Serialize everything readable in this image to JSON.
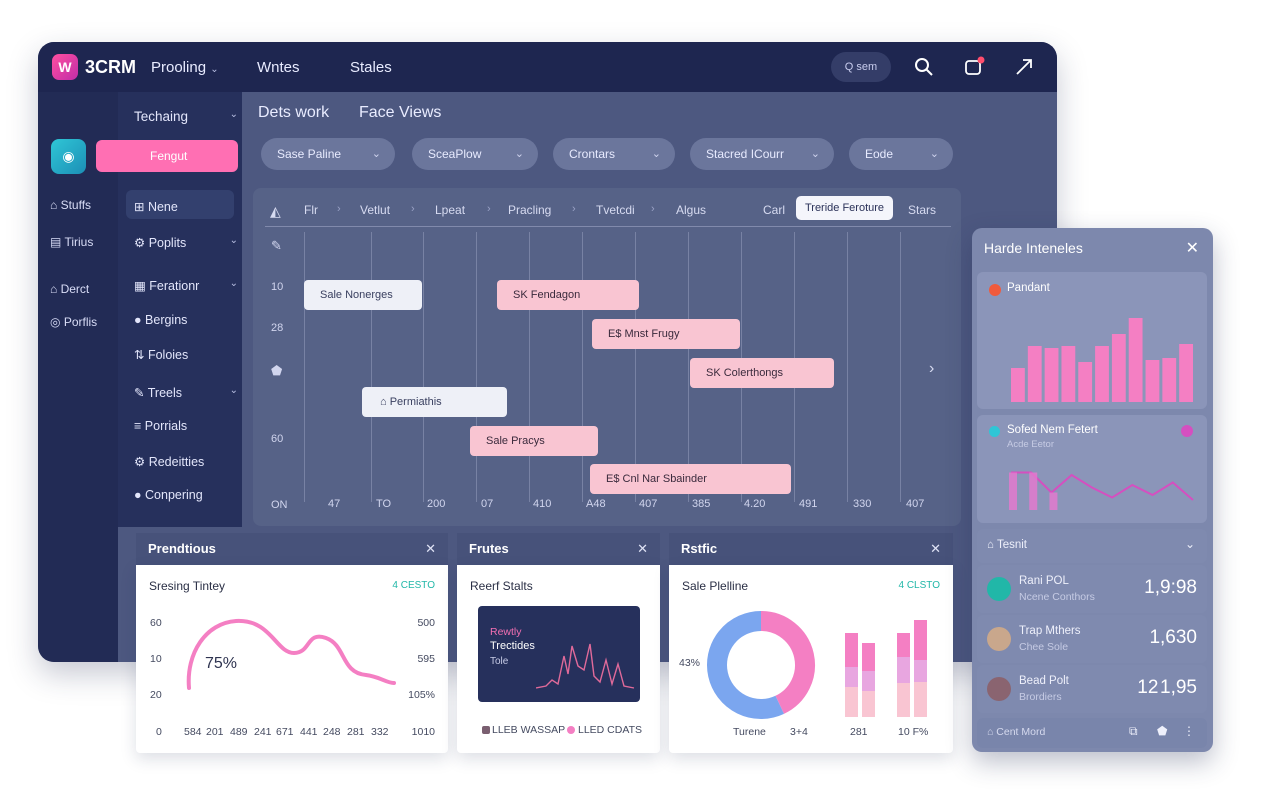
{
  "topbar": {
    "logo_text": "W",
    "brand": "3CRM",
    "nav": [
      "Prooling",
      "Wntes",
      "Stales"
    ],
    "search_label": "Q sem"
  },
  "rail": {
    "items": [
      "Stuffs",
      "Tirius",
      "Derct",
      "Porflis"
    ]
  },
  "subnav": {
    "header": "Techaing",
    "primary_button": "Fengut",
    "items": [
      "Nene",
      "Poplits",
      "Ferationr",
      "Bergins",
      "Foloies",
      "Treels",
      "Porrials",
      "Redeitties",
      "Conpering"
    ]
  },
  "content": {
    "breadcrumbs": [
      "Dets work",
      "Face Views"
    ],
    "filters": [
      "Sase Paline",
      "SceaPlow",
      "Crontars",
      "Stacred ICourr",
      "Eode"
    ]
  },
  "gantt": {
    "headers": [
      "Flr",
      "Vetlut",
      "Lpeat",
      "Pracling",
      "Tvetcdi",
      "Algus",
      "Carl"
    ],
    "active_tab": "Treride Feroture",
    "trailing_tab": "Stars",
    "y_labels": [
      "10",
      "28",
      "60",
      "ON"
    ],
    "x_labels": [
      "47",
      "TO",
      "200",
      "07",
      "410",
      "A48",
      "407",
      "385",
      "4.20",
      "491",
      "330",
      "407"
    ],
    "bars": [
      {
        "label": "Sale Nonerges",
        "style": "white"
      },
      {
        "label": "SK Fendagon",
        "style": "pink"
      },
      {
        "label": "E$ Mnst Frugy",
        "style": "pink"
      },
      {
        "label": "SK Colerthongs",
        "style": "pink"
      },
      {
        "label": "Permiathis",
        "style": "white"
      },
      {
        "label": "Sale Pracys",
        "style": "pink"
      },
      {
        "label": "E$ Cnl Nar Sbainder",
        "style": "pink"
      }
    ]
  },
  "cards": [
    {
      "header": "Prendtious",
      "title": "Sresing Tintey",
      "badge": "4 CESTO",
      "big_value": "75%",
      "left_axis": [
        "60",
        "10",
        "20",
        "0"
      ],
      "right_axis": [
        "500",
        "595",
        "105%",
        "1010"
      ],
      "x_axis": [
        "584",
        "201",
        "489",
        "241",
        "671",
        "441",
        "248",
        "281",
        "332"
      ]
    },
    {
      "header": "Frutes",
      "title": "Reerf Stalts",
      "inner_lines": [
        "Rewtly",
        "Trectides",
        "Tole"
      ],
      "legend": [
        "LLEB WASSAP",
        "LLED CDATS"
      ]
    },
    {
      "header": "Rstfic",
      "title": "Sale Plelline",
      "badge": "4 CLSTO",
      "donut_label": "43%",
      "labels": [
        "Turene",
        "3+4",
        "281",
        "10 F%"
      ]
    }
  ],
  "right_panel": {
    "title": "Harde Inteneles",
    "card1_title": "Pandant",
    "card2_title": "Sofed Nem Fetert",
    "card2_sub": "Acde Eetor",
    "section": "Tesnit",
    "rows": [
      {
        "name": "Rani POL",
        "sub": "Ncene Conthors",
        "value": "1,9:98"
      },
      {
        "name": "Trap Mthers",
        "sub": "Chee Sole",
        "value": "1,630"
      },
      {
        "name": "Bead Polt",
        "sub": "Brordiers",
        "value": "12 1,95"
      }
    ],
    "footer": "Cent Mord"
  },
  "chart_data": [
    {
      "type": "bar",
      "title": "Pandant",
      "values": [
        34,
        56,
        54,
        56,
        40,
        56,
        68,
        84,
        42,
        44,
        58
      ]
    },
    {
      "type": "line",
      "title": "Sofed Nem Fetert",
      "values": [
        30,
        30,
        14,
        28,
        18,
        10,
        20,
        12,
        22,
        8
      ]
    },
    {
      "type": "pie",
      "title": "Sale Plelline",
      "label": "43%",
      "values": [
        43,
        57
      ],
      "colors": [
        "#f47fc3",
        "#7ba6ef"
      ]
    }
  ],
  "colors": {
    "accent": "#ff6fb3",
    "topbar": "#1e2650",
    "panel": "#4d5880",
    "teal": "#21b7a8"
  }
}
